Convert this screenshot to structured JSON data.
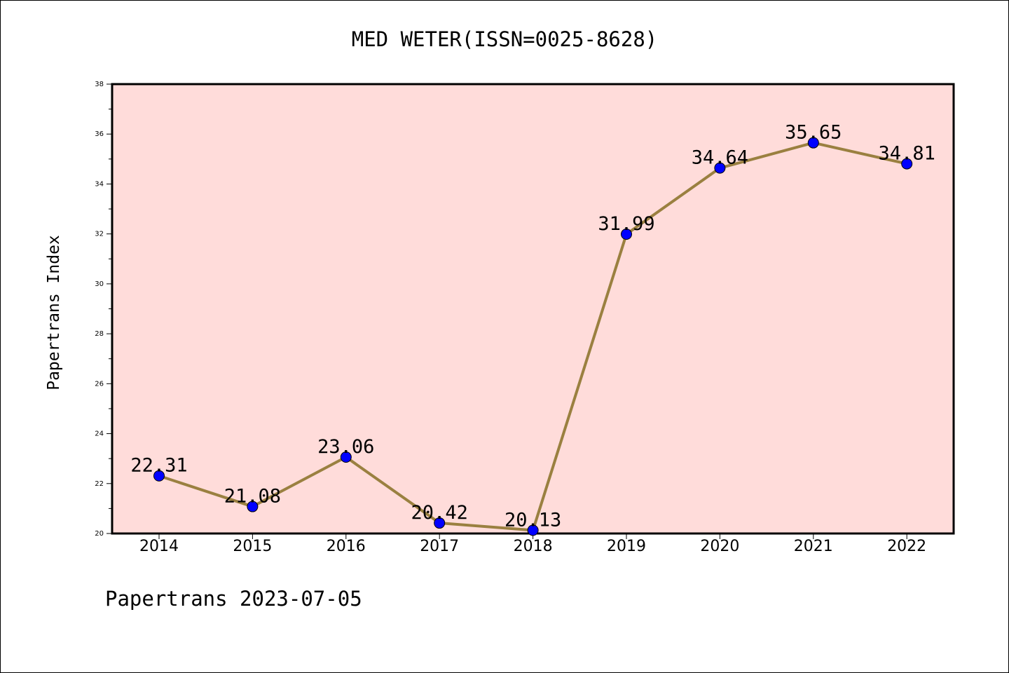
{
  "chart_data": {
    "type": "line",
    "title": "MED WETER(ISSN=0025-8628)",
    "ylabel": "Papertrans Index",
    "xlabel": "",
    "footer": "Papertrans 2023-07-05",
    "categories": [
      "2014",
      "2015",
      "2016",
      "2017",
      "2018",
      "2019",
      "2020",
      "2021",
      "2022"
    ],
    "values": [
      22.31,
      21.08,
      23.06,
      20.42,
      20.13,
      31.99,
      34.64,
      35.65,
      34.81
    ],
    "data_labels": [
      "22.31",
      "21.08",
      "23.06",
      "20.42",
      "20.13",
      "31.99",
      "34.64",
      "35.65",
      "34.81"
    ],
    "ylim": [
      20,
      38
    ],
    "yticks": [
      "20",
      "22",
      "24",
      "26",
      "28",
      "30",
      "32",
      "34",
      "36",
      "38"
    ],
    "grid": false,
    "legend": "none",
    "colors": {
      "plot_background": "#FFDCDA",
      "line": "#9A8040",
      "marker": "#0000FF",
      "axis": "#000000"
    }
  }
}
